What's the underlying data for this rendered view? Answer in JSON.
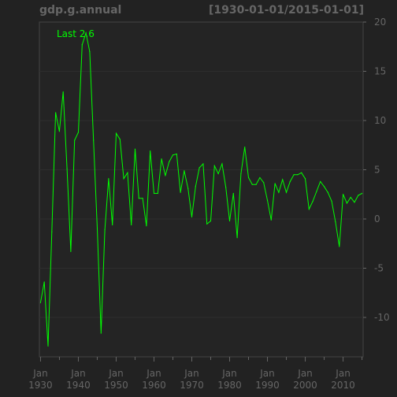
{
  "chart_data": {
    "type": "line",
    "title": "gdp.g.annual",
    "date_range": "[1930-01-01/2015-01-01]",
    "annotation": "Last 2.6",
    "x_tick_labels": [
      {
        "year": 1930,
        "month": "Jan",
        "label": "1930"
      },
      {
        "year": 1940,
        "month": "Jan",
        "label": "1940"
      },
      {
        "year": 1950,
        "month": "Jan",
        "label": "1950"
      },
      {
        "year": 1960,
        "month": "Jan",
        "label": "1960"
      },
      {
        "year": 1970,
        "month": "Jan",
        "label": "1970"
      },
      {
        "year": 1980,
        "month": "Jan",
        "label": "1980"
      },
      {
        "year": 1990,
        "month": "Jan",
        "label": "1990"
      },
      {
        "year": 2000,
        "month": "Jan",
        "label": "2000"
      },
      {
        "year": 2010,
        "month": "Jan",
        "label": "2010"
      }
    ],
    "y_ticks": [
      -10,
      -5,
      0,
      5,
      10,
      15,
      20
    ],
    "xlim": [
      1929.7,
      2015.3
    ],
    "ylim": [
      -14,
      20
    ],
    "grid": true,
    "colors": {
      "background": "#222222",
      "panel": "#242424",
      "series": "#00ff00",
      "grid": "#2e2e2e",
      "text": "#666666",
      "border": "#444444"
    },
    "series": [
      {
        "x": [
          1930,
          1931,
          1932,
          1933,
          1934,
          1935,
          1936,
          1937,
          1938,
          1939,
          1940,
          1941,
          1942,
          1943,
          1944,
          1945,
          1946,
          1947,
          1948,
          1949,
          1950,
          1951,
          1952,
          1953,
          1954,
          1955,
          1956,
          1957,
          1958,
          1959,
          1960,
          1961,
          1962,
          1963,
          1964,
          1965,
          1966,
          1967,
          1968,
          1969,
          1970,
          1971,
          1972,
          1973,
          1974,
          1975,
          1976,
          1977,
          1978,
          1979,
          1980,
          1981,
          1982,
          1983,
          1984,
          1985,
          1986,
          1987,
          1988,
          1989,
          1990,
          1991,
          1992,
          1993,
          1994,
          1995,
          1996,
          1997,
          1998,
          1999,
          2000,
          2001,
          2002,
          2003,
          2004,
          2005,
          2006,
          2007,
          2008,
          2009,
          2010,
          2011,
          2012,
          2013,
          2014,
          2015
        ],
        "values": [
          -8.5,
          -6.4,
          -12.9,
          -1.3,
          10.8,
          8.9,
          12.9,
          5.1,
          -3.3,
          8.0,
          8.8,
          17.7,
          18.9,
          17.0,
          8.0,
          -1.0,
          -11.6,
          -1.1,
          4.1,
          -0.6,
          8.7,
          8.1,
          4.1,
          4.7,
          -0.6,
          7.1,
          2.1,
          2.1,
          -0.7,
          6.9,
          2.6,
          2.6,
          6.1,
          4.4,
          5.8,
          6.5,
          6.6,
          2.7,
          4.9,
          3.1,
          0.2,
          3.3,
          5.2,
          5.6,
          -0.5,
          -0.2,
          5.4,
          4.6,
          5.6,
          3.2,
          -0.2,
          2.6,
          -1.9,
          4.6,
          7.3,
          4.2,
          3.5,
          3.5,
          4.2,
          3.7,
          1.9,
          -0.1,
          3.6,
          2.7,
          4.0,
          2.7,
          3.8,
          4.5,
          4.5,
          4.7,
          4.1,
          1.0,
          1.8,
          2.8,
          3.8,
          3.3,
          2.7,
          1.8,
          -0.3,
          -2.8,
          2.5,
          1.6,
          2.2,
          1.7,
          2.4,
          2.6
        ]
      }
    ]
  }
}
